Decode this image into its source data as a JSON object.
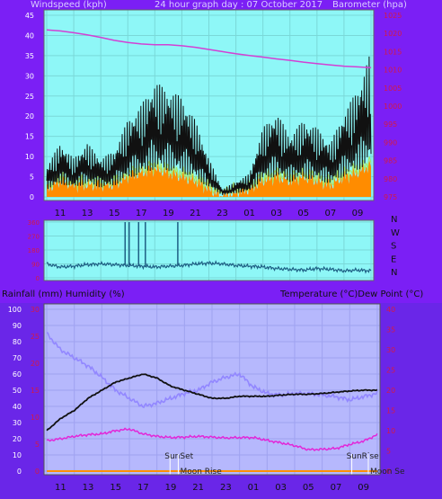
{
  "header": {
    "left_label": "Windspeed (kph)",
    "center_label": "24 hour graph day : 07 October 2017",
    "right_label": "Barometer (hpa)"
  },
  "middle_header": {
    "left_label": "Rainfall (mm)  Humidity (%)",
    "right_label": "Temperature (°C)Dew Point (°C)"
  },
  "compass": [
    "N",
    "W",
    "S",
    "E",
    "N"
  ],
  "colors": {
    "page_bg": "#7b1ff5",
    "plot_bg": "#8ef7f7",
    "bottom_plot_bg": "#b6b8fd",
    "wind": "#111111",
    "gust_fill": "#ff8c00",
    "gust_line": "#a8e860",
    "barometer": "#d340d4",
    "direction": "#1e5f84",
    "temperature": "#111111",
    "humidity": "#9287ff",
    "dew_point": "#e227d8",
    "left_tick_text": "#ffffff",
    "red_tick_text": "#d11a4a"
  },
  "chart_data": [
    {
      "type": "line",
      "id": "wind-barometer",
      "x_tick_labels": [
        "11",
        "13",
        "15",
        "17",
        "19",
        "21",
        "23",
        "01",
        "03",
        "05",
        "07",
        "09"
      ],
      "left_axis": {
        "label": "Windspeed (kph)",
        "ylim": [
          0,
          45
        ],
        "ticks": [
          0,
          5,
          10,
          15,
          20,
          25,
          30,
          35,
          40,
          45
        ]
      },
      "right_axis": {
        "label": "Barometer (hpa)",
        "ylim": [
          975,
          1025
        ],
        "ticks": [
          975,
          980,
          985,
          990,
          995,
          1000,
          1005,
          1010,
          1015,
          1020,
          1025
        ]
      },
      "x_hours_since_start": [
        0,
        1,
        2,
        3,
        4,
        5,
        6,
        7,
        8,
        9,
        10,
        11,
        12,
        13,
        14,
        15,
        16,
        17,
        18,
        19,
        20,
        21,
        22,
        23,
        24
      ],
      "series": [
        {
          "axis": "right",
          "values": [
            1021,
            1020.7,
            1020.2,
            1019.6,
            1018.9,
            1018.1,
            1017.5,
            1017.1,
            1016.9,
            1016.9,
            1016.6,
            1016.2,
            1015.6,
            1015,
            1014.4,
            1013.9,
            1013.5,
            1013,
            1012.6,
            1012.1,
            1011.7,
            1011.3,
            1011,
            1010.8,
            1010.6
          ]
        },
        {
          "axis": "left",
          "values": [
            4,
            7,
            5,
            7,
            5,
            6,
            10,
            12,
            15,
            14,
            13,
            10,
            5,
            1,
            2,
            3,
            9,
            11,
            8,
            10,
            9,
            7,
            11,
            14,
            19
          ]
        },
        {
          "axis": "left",
          "values": [
            2,
            4,
            3,
            3,
            3,
            3,
            5,
            6,
            7,
            6,
            5,
            4,
            2,
            0,
            1,
            2,
            4,
            5,
            4,
            5,
            4,
            3,
            5,
            6,
            8
          ]
        }
      ]
    },
    {
      "type": "line",
      "id": "wind-direction",
      "x_tick_labels": [
        "11",
        "13",
        "15",
        "17",
        "19",
        "21",
        "23",
        "01",
        "03",
        "05",
        "07",
        "09"
      ],
      "y_compass_labels": [
        "N",
        "W",
        "S",
        "E",
        "N"
      ],
      "y_tick_values": [
        0,
        90,
        180,
        270,
        360
      ],
      "ylim": [
        0,
        360
      ],
      "x_hours_since_start": [
        0,
        1,
        2,
        3,
        4,
        5,
        6,
        7,
        8,
        9,
        10,
        11,
        12,
        13,
        14,
        15,
        16,
        17,
        18,
        19,
        20,
        21,
        22,
        23,
        24
      ],
      "series": [
        {
          "values": [
            90,
            70,
            75,
            85,
            90,
            85,
            80,
            75,
            70,
            75,
            80,
            90,
            95,
            90,
            80,
            75,
            70,
            60,
            55,
            50,
            60,
            55,
            45,
            50,
            45
          ]
        }
      ],
      "spikes": [
        {
          "hour": 5.8,
          "value": 360
        },
        {
          "hour": 6.1,
          "value": 360
        },
        {
          "hour": 6.8,
          "value": 360
        },
        {
          "hour": 7.3,
          "value": 360
        },
        {
          "hour": 9.7,
          "value": 360
        }
      ]
    },
    {
      "type": "line",
      "id": "temperature-humidity",
      "x_tick_labels": [
        "11",
        "13",
        "15",
        "17",
        "19",
        "21",
        "23",
        "01",
        "03",
        "05",
        "07",
        "09"
      ],
      "left_axis": {
        "label": "Rainfall (mm)  Humidity (%)",
        "ylim": [
          0,
          100
        ],
        "ticks": [
          0,
          10,
          20,
          30,
          40,
          50,
          60,
          70,
          80,
          90,
          100
        ]
      },
      "left_red_axis": {
        "ylim": [
          0,
          30
        ],
        "ticks": [
          0,
          5,
          10,
          15,
          20,
          25,
          30
        ]
      },
      "right_axis": {
        "label": "Temperature (°C)Dew Point (°C)",
        "ylim": [
          0,
          40
        ],
        "ticks": [
          0,
          5,
          10,
          15,
          20,
          25,
          30,
          35,
          40
        ]
      },
      "x_hours_since_start": [
        0,
        1,
        2,
        3,
        4,
        5,
        6,
        7,
        8,
        9,
        10,
        11,
        12,
        13,
        14,
        15,
        16,
        17,
        18,
        19,
        20,
        21,
        22,
        23,
        24
      ],
      "series": [
        {
          "axis": "right",
          "values": [
            10,
            13,
            15,
            18,
            20,
            22,
            23,
            24,
            23,
            21,
            20,
            19,
            18,
            18,
            18.5,
            18.5,
            18.5,
            18.8,
            19,
            19,
            19.2,
            19.5,
            19.8,
            20,
            20
          ]
        },
        {
          "axis": "left",
          "values": [
            85,
            75,
            70,
            65,
            58,
            50,
            45,
            40,
            42,
            45,
            48,
            50,
            55,
            58,
            60,
            52,
            48,
            47,
            48,
            48,
            47,
            46,
            44,
            46,
            48
          ]
        },
        {
          "axis": "right",
          "values": [
            7.5,
            8,
            8.6,
            9,
            9.2,
            10,
            10.4,
            9.2,
            8.6,
            8.3,
            8.4,
            8.6,
            8.4,
            8.2,
            8.3,
            8.3,
            7.6,
            7,
            6.3,
            5.3,
            5.4,
            5.6,
            6.6,
            7.4,
            9
          ]
        },
        {
          "axis": "left",
          "values": [
            0,
            0,
            0,
            0,
            0,
            0,
            0,
            0,
            0,
            0,
            0,
            0,
            0,
            0,
            0,
            0,
            0,
            0,
            0,
            0,
            0,
            0,
            0,
            0,
            0
          ]
        }
      ],
      "annotations": [
        {
          "text": "SunSet",
          "hour": 8.95
        },
        {
          "text": "Moon Rise",
          "hour": 9.55
        },
        {
          "text": "SunRise",
          "hour": 22.15
        },
        {
          "text": "Moon Se",
          "hour": 23.35
        }
      ]
    }
  ]
}
